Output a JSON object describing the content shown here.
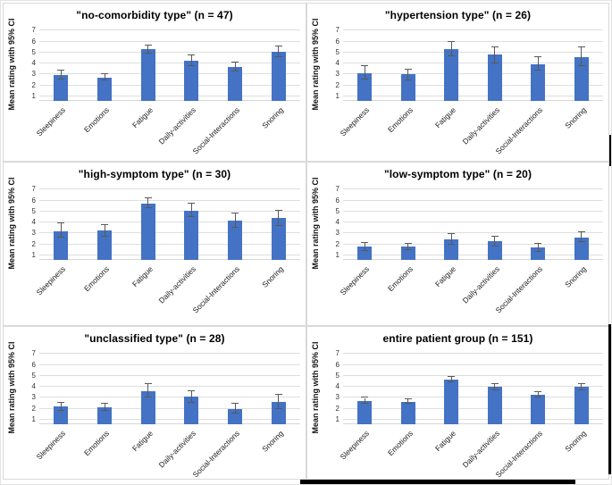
{
  "figure": {
    "ylabel": "Mean rating with 95% CI",
    "categories": [
      "Sleepiness",
      "Emotions",
      "Fatigue",
      "Daily-activities",
      "Social-Interactions",
      "Snoring"
    ],
    "yticks": [
      1,
      2,
      3,
      4,
      5,
      6,
      7
    ],
    "ylim": [
      0,
      7
    ],
    "grid": true,
    "legend": "none",
    "colors": {
      "bar": "#4472C4",
      "error_bar": "#595959",
      "gridline": "#DEDEDE",
      "panel_border": "#D9D9D9",
      "title_text": "#000000",
      "tick_text": "#333333",
      "frame_artifact": "#000000"
    }
  },
  "chart_data": [
    {
      "type": "bar",
      "title": "\"no-comorbidity type\" (n = 47)",
      "n": 47,
      "ylabel": "Mean rating with 95% CI",
      "categories": [
        "Sleepiness",
        "Emotions",
        "Fatigue",
        "Daily-activities",
        "Social-Interactions",
        "Snoring"
      ],
      "values": [
        2.95,
        2.75,
        5.3,
        4.25,
        3.7,
        5.1
      ],
      "ci_lower": [
        2.55,
        2.45,
        4.95,
        3.8,
        3.3,
        4.55
      ],
      "ci_upper": [
        3.35,
        3.05,
        5.65,
        4.75,
        4.1,
        5.55
      ],
      "ylim": [
        0,
        7
      ],
      "yticks": [
        1,
        2,
        3,
        4,
        5,
        6,
        7
      ]
    },
    {
      "type": "bar",
      "title": "\"hypertension type\" (n = 26)",
      "n": 26,
      "ylabel": "Mean rating with 95% CI",
      "categories": [
        "Sleepiness",
        "Emotions",
        "Fatigue",
        "Daily-activities",
        "Social-Interactions",
        "Snoring"
      ],
      "values": [
        3.15,
        3.0,
        5.3,
        4.8,
        3.95,
        4.55
      ],
      "ci_lower": [
        2.55,
        2.5,
        4.65,
        4.05,
        3.4,
        3.8
      ],
      "ci_upper": [
        3.75,
        3.45,
        5.95,
        5.5,
        4.6,
        5.45
      ],
      "ylim": [
        0,
        7
      ],
      "yticks": [
        1,
        2,
        3,
        4,
        5,
        6,
        7
      ]
    },
    {
      "type": "bar",
      "title": "\"high-symptom type\" (n = 30)",
      "n": 30,
      "ylabel": "Mean rating with 95% CI",
      "categories": [
        "Sleepiness",
        "Emotions",
        "Fatigue",
        "Daily-activities",
        "Social-Interactions",
        "Snoring"
      ],
      "values": [
        3.2,
        3.25,
        5.75,
        5.1,
        4.15,
        4.4
      ],
      "ci_lower": [
        2.65,
        2.75,
        5.3,
        4.5,
        3.5,
        3.7
      ],
      "ci_upper": [
        3.9,
        3.8,
        6.2,
        5.7,
        4.8,
        5.1
      ],
      "ylim": [
        0,
        7
      ],
      "yticks": [
        1,
        2,
        3,
        4,
        5,
        6,
        7
      ]
    },
    {
      "type": "bar",
      "title": "\"low-symptom type\" (n = 20)",
      "n": 20,
      "ylabel": "Mean rating with 95% CI",
      "categories": [
        "Sleepiness",
        "Emotions",
        "Fatigue",
        "Daily-activities",
        "Social-Interactions",
        "Snoring"
      ],
      "values": [
        1.8,
        1.8,
        2.45,
        2.3,
        1.7,
        2.65
      ],
      "ci_lower": [
        1.45,
        1.5,
        1.95,
        1.85,
        1.35,
        2.2
      ],
      "ci_upper": [
        2.15,
        2.1,
        2.95,
        2.75,
        2.05,
        3.1
      ],
      "ylim": [
        0,
        7
      ],
      "yticks": [
        1,
        2,
        3,
        4,
        5,
        6,
        7
      ]
    },
    {
      "type": "bar",
      "title": "\"unclassified type\" (n = 28)",
      "n": 28,
      "ylabel": "Mean rating with 95% CI",
      "categories": [
        "Sleepiness",
        "Emotions",
        "Fatigue",
        "Daily-activities",
        "Social-Interactions",
        "Snoring"
      ],
      "values": [
        2.2,
        2.15,
        3.65,
        3.1,
        2.0,
        2.6
      ],
      "ci_lower": [
        1.85,
        1.85,
        3.0,
        2.55,
        1.55,
        1.95
      ],
      "ci_upper": [
        2.55,
        2.45,
        4.3,
        3.65,
        2.45,
        3.3
      ],
      "ylim": [
        0,
        7
      ],
      "yticks": [
        1,
        2,
        3,
        4,
        5,
        6,
        7
      ]
    },
    {
      "type": "bar",
      "title": "entire patient group (n = 151)",
      "n": 151,
      "ylabel": "Mean rating with 95% CI",
      "categories": [
        "Sleepiness",
        "Emotions",
        "Fatigue",
        "Daily-activities",
        "Social-Interactions",
        "Snoring"
      ],
      "values": [
        2.75,
        2.65,
        4.65,
        4.0,
        3.25,
        4.0
      ],
      "ci_lower": [
        2.5,
        2.45,
        4.4,
        3.7,
        3.0,
        3.7
      ],
      "ci_upper": [
        3.0,
        2.85,
        4.9,
        4.3,
        3.5,
        4.3
      ],
      "ylim": [
        0,
        7
      ],
      "yticks": [
        1,
        2,
        3,
        4,
        5,
        6,
        7
      ]
    }
  ]
}
